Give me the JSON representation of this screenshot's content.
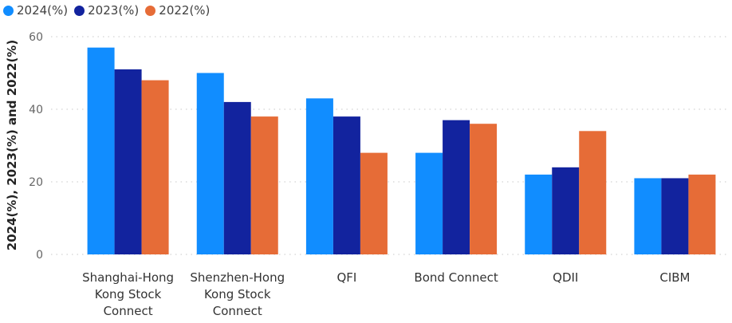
{
  "chart_data": {
    "type": "bar",
    "categories": [
      "Shanghai-Hong Kong Stock Connect",
      "Shenzhen-Hong Kong Stock Connect",
      "QFI",
      "Bond Connect",
      "QDII",
      "CIBM"
    ],
    "category_lines": [
      [
        "Shanghai-Hong",
        "Kong Stock",
        "Connect"
      ],
      [
        "Shenzhen-Hong",
        "Kong Stock",
        "Connect"
      ],
      [
        "QFI"
      ],
      [
        "Bond Connect"
      ],
      [
        "QDII"
      ],
      [
        "CIBM"
      ]
    ],
    "series": [
      {
        "name": "2024(%)",
        "color": "#118dff",
        "values": [
          57,
          50,
          43,
          28,
          22,
          21
        ]
      },
      {
        "name": "2023(%)",
        "color": "#12239e",
        "values": [
          51,
          42,
          38,
          37,
          24,
          21
        ]
      },
      {
        "name": "2022(%)",
        "color": "#e66c37",
        "values": [
          48,
          38,
          28,
          36,
          34,
          22
        ]
      }
    ],
    "ylabel": "2024(%), 2023(%) and 2022(%)",
    "ylim": [
      0,
      60
    ],
    "yticks": [
      0,
      20,
      40,
      60
    ],
    "grid": true,
    "legend_position": "top-left"
  }
}
